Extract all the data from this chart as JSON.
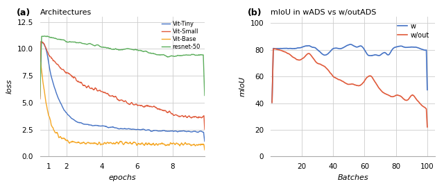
{
  "left_title": "Architectures",
  "left_label_a": "(a)",
  "left_xlabel": "epochs",
  "left_ylabel": "loss",
  "left_xlim": [
    0.5,
    9.8
  ],
  "left_ylim": [
    0.0,
    13.0
  ],
  "left_xticks": [
    1,
    2,
    4,
    6,
    8
  ],
  "left_yticks": [
    0.0,
    2.5,
    5.0,
    7.5,
    10.0,
    12.5
  ],
  "left_legend": [
    "Vit-Tiny",
    "Vit-Small",
    "Vit-Base",
    "resnet-50"
  ],
  "left_colors": [
    "#4472C4",
    "#E05A3A",
    "#F5A623",
    "#5BAD5B"
  ],
  "vit_tiny_x": [
    0.5,
    0.7,
    0.9,
    1.0,
    1.2,
    1.5,
    2.0,
    2.5,
    3.0,
    4.0,
    5.0,
    6.0,
    7.0,
    8.0,
    9.0,
    9.8
  ],
  "vit_tiny_y": [
    10.8,
    10.5,
    9.5,
    8.5,
    7.0,
    5.5,
    4.0,
    3.3,
    3.0,
    2.8,
    2.6,
    2.5,
    2.4,
    2.35,
    2.3,
    2.3
  ],
  "vit_small_x": [
    0.5,
    0.7,
    1.0,
    1.5,
    2.0,
    2.5,
    3.0,
    4.0,
    5.0,
    5.5,
    6.0,
    7.0,
    7.5,
    8.0,
    8.5,
    9.0,
    9.8
  ],
  "vit_small_y": [
    10.8,
    10.5,
    9.5,
    8.5,
    7.8,
    7.2,
    6.6,
    6.0,
    5.3,
    5.0,
    4.8,
    4.5,
    4.2,
    3.9,
    3.75,
    3.7,
    3.7
  ],
  "vit_base_x": [
    0.5,
    0.6,
    0.7,
    0.8,
    0.9,
    1.0,
    1.1,
    1.2,
    1.3,
    1.5,
    1.7,
    2.0,
    2.3,
    2.5,
    3.0,
    4.0,
    5.0,
    6.0,
    7.0,
    8.0,
    9.0,
    9.8
  ],
  "vit_base_y": [
    9.0,
    8.0,
    6.5,
    5.5,
    4.5,
    3.8,
    3.3,
    2.8,
    2.5,
    2.0,
    1.7,
    1.5,
    1.35,
    1.3,
    1.25,
    1.2,
    1.2,
    1.2,
    1.15,
    1.15,
    1.1,
    1.1
  ],
  "resnet_x": [
    0.5,
    1.0,
    1.5,
    2.0,
    3.0,
    4.0,
    4.5,
    5.0,
    5.5,
    6.0,
    6.5,
    7.0,
    7.5,
    8.0,
    8.5,
    9.0,
    9.5,
    9.8
  ],
  "resnet_y": [
    11.2,
    11.1,
    10.9,
    10.7,
    10.5,
    10.2,
    10.0,
    9.9,
    10.0,
    9.8,
    9.7,
    9.5,
    9.4,
    9.3,
    9.4,
    9.4,
    9.45,
    9.45
  ],
  "right_title": "mIoU in wADS vs w/outADS",
  "right_label_b": "(b)",
  "right_xlabel": "Batches",
  "right_ylabel": "mIoU",
  "right_xlim": [
    0,
    105
  ],
  "right_ylim": [
    0,
    105
  ],
  "right_xticks": [
    20,
    40,
    60,
    80,
    100
  ],
  "right_yticks": [
    0,
    20,
    40,
    60,
    80,
    100
  ],
  "right_legend": [
    "w",
    "w/out"
  ],
  "right_colors": [
    "#4472C4",
    "#E05A3A"
  ],
  "w_x": [
    1,
    5,
    10,
    15,
    20,
    25,
    27,
    30,
    35,
    40,
    45,
    50,
    53,
    55,
    58,
    62,
    65,
    68,
    70,
    73,
    75,
    78,
    80,
    83,
    85,
    88,
    90,
    93,
    95,
    98,
    100
  ],
  "w_y": [
    81,
    81,
    81,
    81,
    82,
    83,
    82,
    80,
    76,
    81,
    81,
    84,
    83,
    82,
    83,
    76,
    76,
    76,
    76,
    78,
    76,
    81,
    82,
    83,
    82,
    82,
    82,
    82,
    81,
    80,
    80
  ],
  "wout_x": [
    1,
    5,
    10,
    15,
    20,
    25,
    27,
    30,
    35,
    40,
    45,
    50,
    53,
    55,
    58,
    60,
    62,
    65,
    67,
    70,
    73,
    75,
    78,
    80,
    83,
    85,
    88,
    90,
    93,
    95,
    98,
    100
  ],
  "wout_y": [
    81,
    80,
    78,
    74,
    73,
    77,
    74,
    70,
    67,
    60,
    57,
    54,
    54,
    53,
    54,
    57,
    60,
    59,
    55,
    50,
    47,
    46,
    45,
    46,
    45,
    43,
    43,
    46,
    43,
    40,
    37,
    35
  ],
  "background_color": "#ffffff",
  "grid_color": "#cccccc"
}
